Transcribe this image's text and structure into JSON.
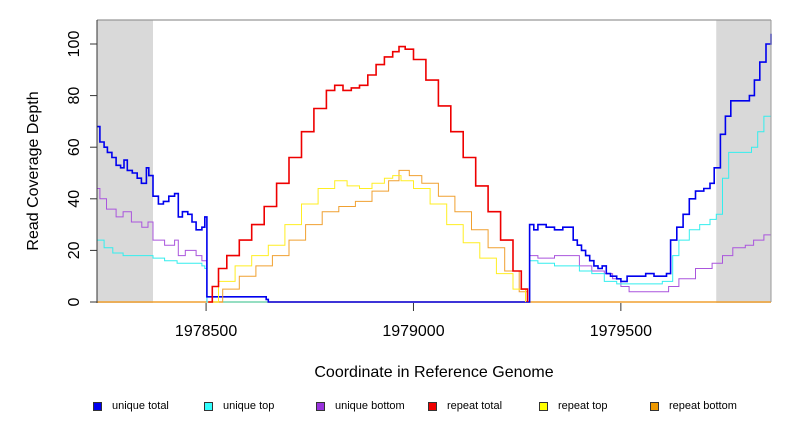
{
  "chart_data": {
    "type": "line",
    "title": "",
    "xlabel": "Coordinate in Reference Genome",
    "ylabel": "Read Coverage Depth",
    "xlim": [
      1978237,
      1979862
    ],
    "ylim": [
      0,
      108
    ],
    "x_ticks": [
      1978500,
      1979000,
      1979500
    ],
    "x_tick_labels": [
      "1978500",
      "1979000",
      "1979500"
    ],
    "y_ticks": [
      0,
      20,
      40,
      60,
      80,
      100
    ],
    "y_tick_labels": [
      "0",
      "20",
      "40",
      "60",
      "80",
      "100"
    ],
    "grid": false,
    "shaded_regions": [
      {
        "name": "left-flank",
        "x": [
          1978237,
          1978372
        ],
        "color": "#d9d9d9"
      },
      {
        "name": "right-flank",
        "x": [
          1979730,
          1979862
        ],
        "color": "#d9d9d9"
      }
    ],
    "legend_position": "bottom",
    "series": [
      {
        "name": "unique total",
        "color": "#0000ee",
        "width": 1.6,
        "points": [
          [
            1978237,
            68
          ],
          [
            1978244,
            62
          ],
          [
            1978254,
            60
          ],
          [
            1978262,
            58
          ],
          [
            1978273,
            56
          ],
          [
            1978283,
            53
          ],
          [
            1978294,
            52
          ],
          [
            1978302,
            55
          ],
          [
            1978310,
            51
          ],
          [
            1978322,
            50
          ],
          [
            1978334,
            48
          ],
          [
            1978344,
            46
          ],
          [
            1978356,
            52
          ],
          [
            1978362,
            49
          ],
          [
            1978372,
            41
          ],
          [
            1978385,
            38
          ],
          [
            1978397,
            39
          ],
          [
            1978410,
            41
          ],
          [
            1978424,
            42
          ],
          [
            1978433,
            33
          ],
          [
            1978443,
            35
          ],
          [
            1978456,
            34
          ],
          [
            1978466,
            31
          ],
          [
            1978476,
            28
          ],
          [
            1978490,
            29
          ],
          [
            1978497,
            33
          ],
          [
            1978502,
            2
          ],
          [
            1978640,
            2
          ],
          [
            1978645,
            1
          ],
          [
            1978650,
            0
          ],
          [
            1979272,
            0
          ],
          [
            1979280,
            30
          ],
          [
            1979290,
            28
          ],
          [
            1979300,
            30
          ],
          [
            1979320,
            29
          ],
          [
            1979340,
            28
          ],
          [
            1979360,
            29
          ],
          [
            1979375,
            29
          ],
          [
            1979385,
            24
          ],
          [
            1979395,
            22
          ],
          [
            1979405,
            20
          ],
          [
            1979415,
            18
          ],
          [
            1979425,
            16
          ],
          [
            1979435,
            14
          ],
          [
            1979445,
            13
          ],
          [
            1979455,
            14
          ],
          [
            1979465,
            11
          ],
          [
            1979475,
            10
          ],
          [
            1979490,
            9
          ],
          [
            1979500,
            8
          ],
          [
            1979515,
            10
          ],
          [
            1979540,
            10
          ],
          [
            1979560,
            11
          ],
          [
            1979580,
            10
          ],
          [
            1979610,
            11
          ],
          [
            1979620,
            24
          ],
          [
            1979635,
            29
          ],
          [
            1979650,
            34
          ],
          [
            1979665,
            40
          ],
          [
            1979680,
            43
          ],
          [
            1979700,
            44
          ],
          [
            1979715,
            46
          ],
          [
            1979725,
            52
          ],
          [
            1979740,
            65
          ],
          [
            1979752,
            72
          ],
          [
            1979765,
            78
          ],
          [
            1979790,
            78
          ],
          [
            1979810,
            80
          ],
          [
            1979822,
            86
          ],
          [
            1979835,
            93
          ],
          [
            1979850,
            100
          ],
          [
            1979862,
            104
          ]
        ]
      },
      {
        "name": "unique top",
        "color": "#33eeee",
        "width": 1.0,
        "points": [
          [
            1978237,
            24
          ],
          [
            1978254,
            21
          ],
          [
            1978275,
            19
          ],
          [
            1978300,
            18
          ],
          [
            1978330,
            18
          ],
          [
            1978356,
            18
          ],
          [
            1978372,
            17
          ],
          [
            1978400,
            16
          ],
          [
            1978430,
            15
          ],
          [
            1978460,
            15
          ],
          [
            1978490,
            14
          ],
          [
            1978497,
            13
          ],
          [
            1978502,
            0
          ],
          [
            1979272,
            0
          ],
          [
            1979280,
            16
          ],
          [
            1979300,
            15
          ],
          [
            1979340,
            14
          ],
          [
            1979380,
            14
          ],
          [
            1979400,
            12
          ],
          [
            1979430,
            11
          ],
          [
            1979460,
            8
          ],
          [
            1979490,
            7
          ],
          [
            1979520,
            7
          ],
          [
            1979560,
            7
          ],
          [
            1979600,
            8
          ],
          [
            1979610,
            8
          ],
          [
            1979625,
            18
          ],
          [
            1979640,
            24
          ],
          [
            1979665,
            28
          ],
          [
            1979690,
            30
          ],
          [
            1979715,
            32
          ],
          [
            1979730,
            34
          ],
          [
            1979745,
            48
          ],
          [
            1979760,
            58
          ],
          [
            1979800,
            58
          ],
          [
            1979815,
            60
          ],
          [
            1979830,
            66
          ],
          [
            1979845,
            72
          ],
          [
            1979862,
            76
          ]
        ]
      },
      {
        "name": "unique bottom",
        "color": "#aa55dd",
        "width": 1.0,
        "points": [
          [
            1978237,
            44
          ],
          [
            1978244,
            40
          ],
          [
            1978260,
            36
          ],
          [
            1978283,
            33
          ],
          [
            1978300,
            35
          ],
          [
            1978320,
            31
          ],
          [
            1978345,
            29
          ],
          [
            1978360,
            31
          ],
          [
            1978372,
            24
          ],
          [
            1978400,
            22
          ],
          [
            1978424,
            24
          ],
          [
            1978433,
            18
          ],
          [
            1978450,
            20
          ],
          [
            1978476,
            18
          ],
          [
            1978490,
            16
          ],
          [
            1978497,
            16
          ],
          [
            1978502,
            0
          ],
          [
            1979272,
            0
          ],
          [
            1979280,
            18
          ],
          [
            1979300,
            17
          ],
          [
            1979340,
            18
          ],
          [
            1979380,
            18
          ],
          [
            1979400,
            14
          ],
          [
            1979430,
            12
          ],
          [
            1979460,
            11
          ],
          [
            1979480,
            9
          ],
          [
            1979500,
            6
          ],
          [
            1979520,
            4
          ],
          [
            1979560,
            4
          ],
          [
            1979600,
            4
          ],
          [
            1979615,
            6
          ],
          [
            1979640,
            9
          ],
          [
            1979680,
            13
          ],
          [
            1979720,
            15
          ],
          [
            1979745,
            18
          ],
          [
            1979770,
            21
          ],
          [
            1979800,
            22
          ],
          [
            1979820,
            24
          ],
          [
            1979845,
            26
          ],
          [
            1979862,
            27
          ]
        ]
      },
      {
        "name": "repeat total",
        "color": "#ee0000",
        "width": 1.6,
        "points": [
          [
            1978505,
            0
          ],
          [
            1978515,
            6
          ],
          [
            1978530,
            13
          ],
          [
            1978550,
            18
          ],
          [
            1978580,
            24
          ],
          [
            1978610,
            30
          ],
          [
            1978640,
            37
          ],
          [
            1978670,
            46
          ],
          [
            1978700,
            56
          ],
          [
            1978730,
            66
          ],
          [
            1978760,
            75
          ],
          [
            1978790,
            82
          ],
          [
            1978810,
            84
          ],
          [
            1978830,
            82
          ],
          [
            1978850,
            83
          ],
          [
            1978870,
            84
          ],
          [
            1978890,
            88
          ],
          [
            1978910,
            92
          ],
          [
            1978930,
            95
          ],
          [
            1978950,
            97
          ],
          [
            1978965,
            99
          ],
          [
            1978980,
            98
          ],
          [
            1979000,
            94
          ],
          [
            1979030,
            86
          ],
          [
            1979060,
            76
          ],
          [
            1979090,
            66
          ],
          [
            1979120,
            56
          ],
          [
            1979150,
            45
          ],
          [
            1979180,
            35
          ],
          [
            1979210,
            24
          ],
          [
            1979240,
            12
          ],
          [
            1979260,
            5
          ],
          [
            1979275,
            0
          ]
        ]
      },
      {
        "name": "repeat top",
        "color": "#ffee22",
        "width": 1.0,
        "points": [
          [
            1978505,
            0
          ],
          [
            1978530,
            8
          ],
          [
            1978570,
            14
          ],
          [
            1978610,
            18
          ],
          [
            1978650,
            22
          ],
          [
            1978690,
            30
          ],
          [
            1978730,
            38
          ],
          [
            1978770,
            44
          ],
          [
            1978810,
            47
          ],
          [
            1978840,
            45
          ],
          [
            1978870,
            44
          ],
          [
            1978900,
            46
          ],
          [
            1978930,
            48
          ],
          [
            1978950,
            49
          ],
          [
            1978970,
            47
          ],
          [
            1979000,
            44
          ],
          [
            1979040,
            38
          ],
          [
            1979080,
            30
          ],
          [
            1979120,
            23
          ],
          [
            1979160,
            17
          ],
          [
            1979200,
            11
          ],
          [
            1979240,
            5
          ],
          [
            1979270,
            0
          ]
        ]
      },
      {
        "name": "repeat bottom",
        "color": "#f0a030",
        "width": 1.0,
        "points": [
          [
            1978505,
            0
          ],
          [
            1978540,
            5
          ],
          [
            1978580,
            10
          ],
          [
            1978620,
            14
          ],
          [
            1978660,
            18
          ],
          [
            1978700,
            24
          ],
          [
            1978740,
            30
          ],
          [
            1978780,
            35
          ],
          [
            1978820,
            37
          ],
          [
            1978860,
            39
          ],
          [
            1978900,
            43
          ],
          [
            1978940,
            47
          ],
          [
            1978965,
            51
          ],
          [
            1978990,
            49
          ],
          [
            1979020,
            46
          ],
          [
            1979060,
            41
          ],
          [
            1979100,
            35
          ],
          [
            1979140,
            28
          ],
          [
            1979180,
            21
          ],
          [
            1979220,
            12
          ],
          [
            1979255,
            4
          ],
          [
            1979275,
            0
          ]
        ]
      }
    ],
    "baseline": {
      "name": "repeat bottom baseline",
      "color": "#f0a030",
      "value": 0
    }
  },
  "legend": {
    "items": [
      {
        "label": "unique total",
        "color": "#0000ee"
      },
      {
        "label": "unique top",
        "color": "#33ffff"
      },
      {
        "label": "unique bottom",
        "color": "#9933dd"
      },
      {
        "label": "repeat total",
        "color": "#ee0000"
      },
      {
        "label": "repeat top",
        "color": "#ffff00"
      },
      {
        "label": "repeat bottom",
        "color": "#ee9900"
      }
    ]
  }
}
